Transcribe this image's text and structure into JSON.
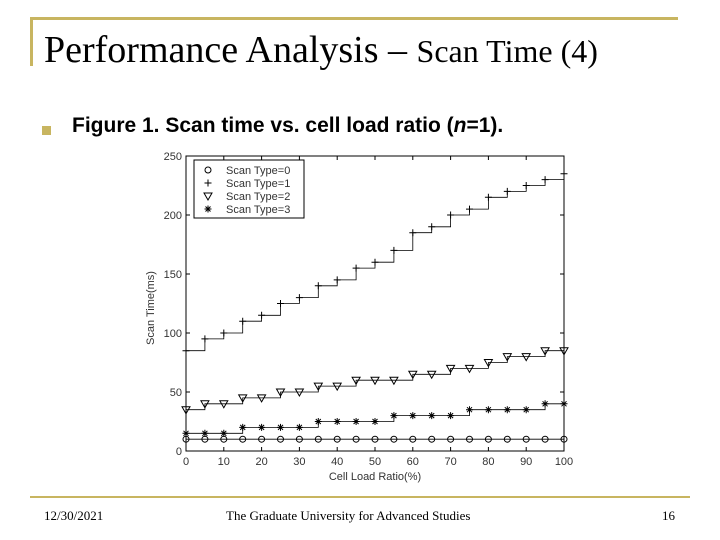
{
  "slide": {
    "title_main": "Performance Analysis –",
    "title_sub": "Scan Time (4)",
    "caption_pre": "Figure 1. Scan time vs. cell load ratio (",
    "caption_n": "n",
    "caption_post": "=1).",
    "footer_date": "12/30/2021",
    "footer_org": "The Graduate University for Advanced Studies",
    "footer_page": "16"
  },
  "colors": {
    "accent": "#c8b560",
    "plot": "#000000"
  },
  "chart_data": {
    "type": "line",
    "title": "",
    "xlabel": "Cell Load Ratio(%)",
    "ylabel": "Scan Time(ms)",
    "xlim": [
      0,
      100
    ],
    "ylim": [
      0,
      250
    ],
    "xticks": [
      0,
      10,
      20,
      30,
      40,
      50,
      60,
      70,
      80,
      90,
      100
    ],
    "yticks": [
      0,
      50,
      100,
      150,
      200,
      250
    ],
    "grid": false,
    "legend_position": "top-left",
    "series": [
      {
        "name": "Scan Type=0",
        "marker": "circle",
        "x": [
          0,
          5,
          10,
          15,
          20,
          25,
          30,
          35,
          40,
          45,
          50,
          55,
          60,
          65,
          70,
          75,
          80,
          85,
          90,
          95,
          100
        ],
        "y": [
          10,
          10,
          10,
          10,
          10,
          10,
          10,
          10,
          10,
          10,
          10,
          10,
          10,
          10,
          10,
          10,
          10,
          10,
          10,
          10,
          10
        ]
      },
      {
        "name": "Scan Type=1",
        "marker": "plus",
        "x": [
          0,
          5,
          10,
          15,
          20,
          25,
          30,
          35,
          40,
          45,
          50,
          55,
          60,
          65,
          70,
          75,
          80,
          85,
          90,
          95,
          100
        ],
        "y": [
          85,
          95,
          100,
          110,
          115,
          125,
          130,
          140,
          145,
          155,
          160,
          170,
          185,
          190,
          200,
          205,
          215,
          220,
          225,
          230,
          235
        ]
      },
      {
        "name": "Scan Type=2",
        "marker": "triangle-down",
        "x": [
          0,
          5,
          10,
          15,
          20,
          25,
          30,
          35,
          40,
          45,
          50,
          55,
          60,
          65,
          70,
          75,
          80,
          85,
          90,
          95,
          100
        ],
        "y": [
          35,
          40,
          40,
          45,
          45,
          50,
          50,
          55,
          55,
          60,
          60,
          60,
          65,
          65,
          70,
          70,
          75,
          80,
          80,
          85,
          85
        ]
      },
      {
        "name": "Scan Type=3",
        "marker": "star",
        "x": [
          0,
          5,
          10,
          15,
          20,
          25,
          30,
          35,
          40,
          45,
          50,
          55,
          60,
          65,
          70,
          75,
          80,
          85,
          90,
          95,
          100
        ],
        "y": [
          15,
          15,
          15,
          20,
          20,
          20,
          20,
          25,
          25,
          25,
          25,
          30,
          30,
          30,
          30,
          35,
          35,
          35,
          35,
          40,
          40
        ]
      }
    ]
  }
}
